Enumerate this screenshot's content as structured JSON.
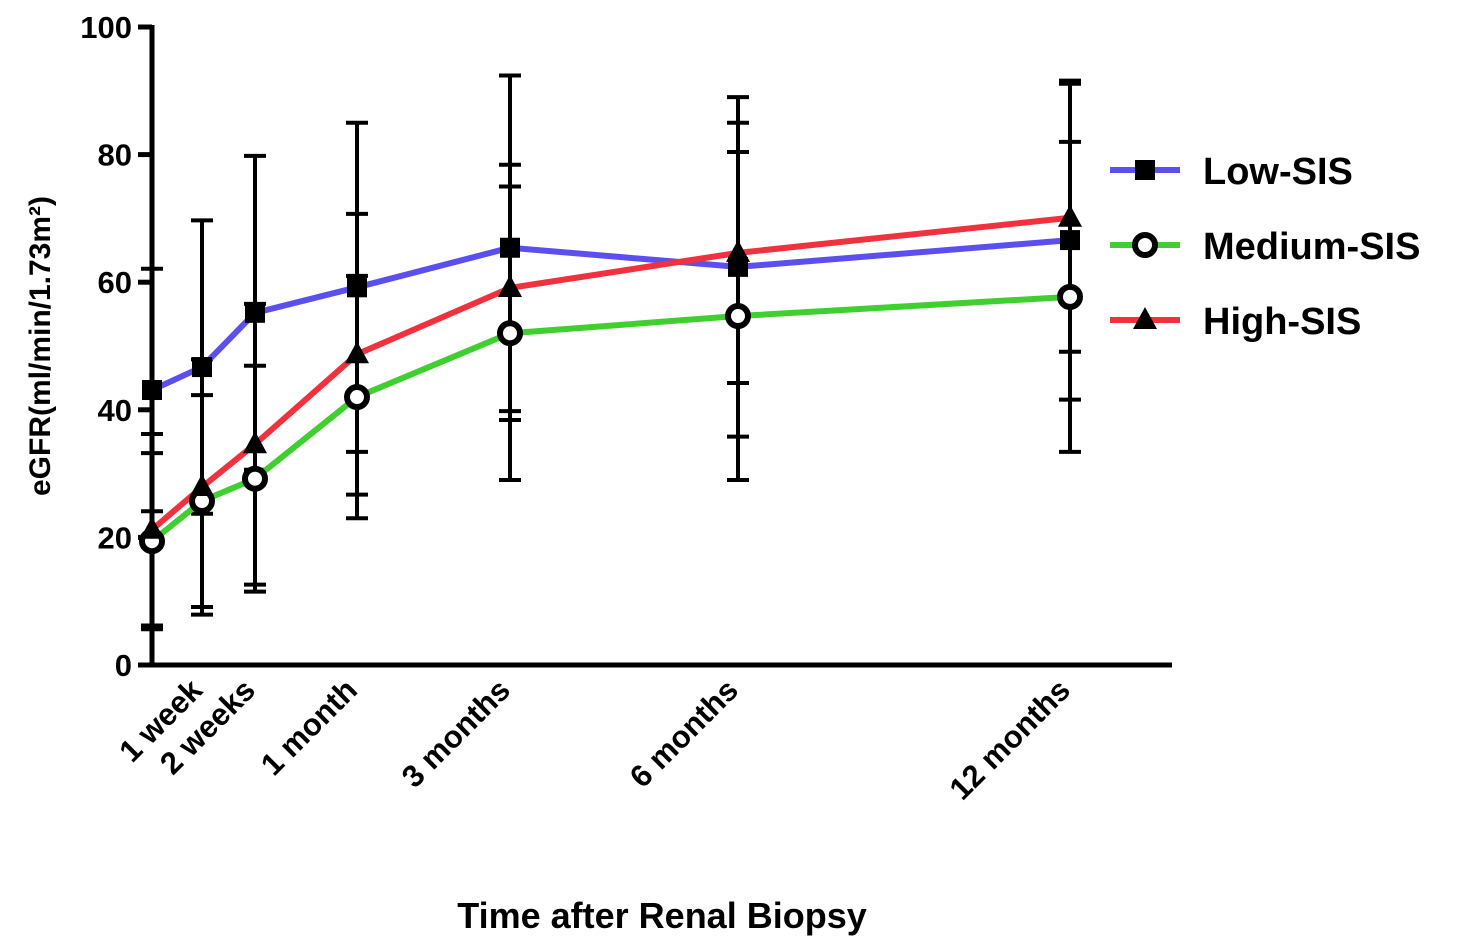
{
  "chart_data": {
    "type": "line",
    "x_label": "Time after Renal Biopsy",
    "y_label": "eGFR(ml/min/1.73m²)",
    "categories": [
      null,
      "1 week",
      "2 weeks",
      "1 month",
      "3 months",
      "6 months",
      "12 months"
    ],
    "ylim": [
      0,
      100
    ],
    "yticks": [
      0,
      20,
      40,
      60,
      80,
      100
    ],
    "series": [
      {
        "name": "Low-SIS",
        "color": "#5b4ff0",
        "marker": "square",
        "values": [
          43.1,
          46.7,
          55.2,
          59.2,
          65.4,
          62.4,
          66.6
        ],
        "errors": [
          19,
          23,
          24.6,
          25.8,
          27,
          26.6,
          25
        ]
      },
      {
        "name": "Medium-SIS",
        "color": "#3fcf2f",
        "marker": "circle",
        "values": [
          19.4,
          25.7,
          29.2,
          42.0,
          52.0,
          54.7,
          57.7
        ],
        "errors": [
          13.8,
          16.6,
          17.7,
          19,
          23,
          25.7,
          24.3
        ]
      },
      {
        "name": "High-SIS",
        "color": "#f0323f",
        "marker": "triangle",
        "values": [
          21.2,
          27.9,
          34.6,
          48.7,
          59.1,
          64.6,
          70.1
        ],
        "errors": [
          15,
          20,
          22,
          22,
          19.3,
          20.4,
          21
        ]
      }
    ]
  }
}
